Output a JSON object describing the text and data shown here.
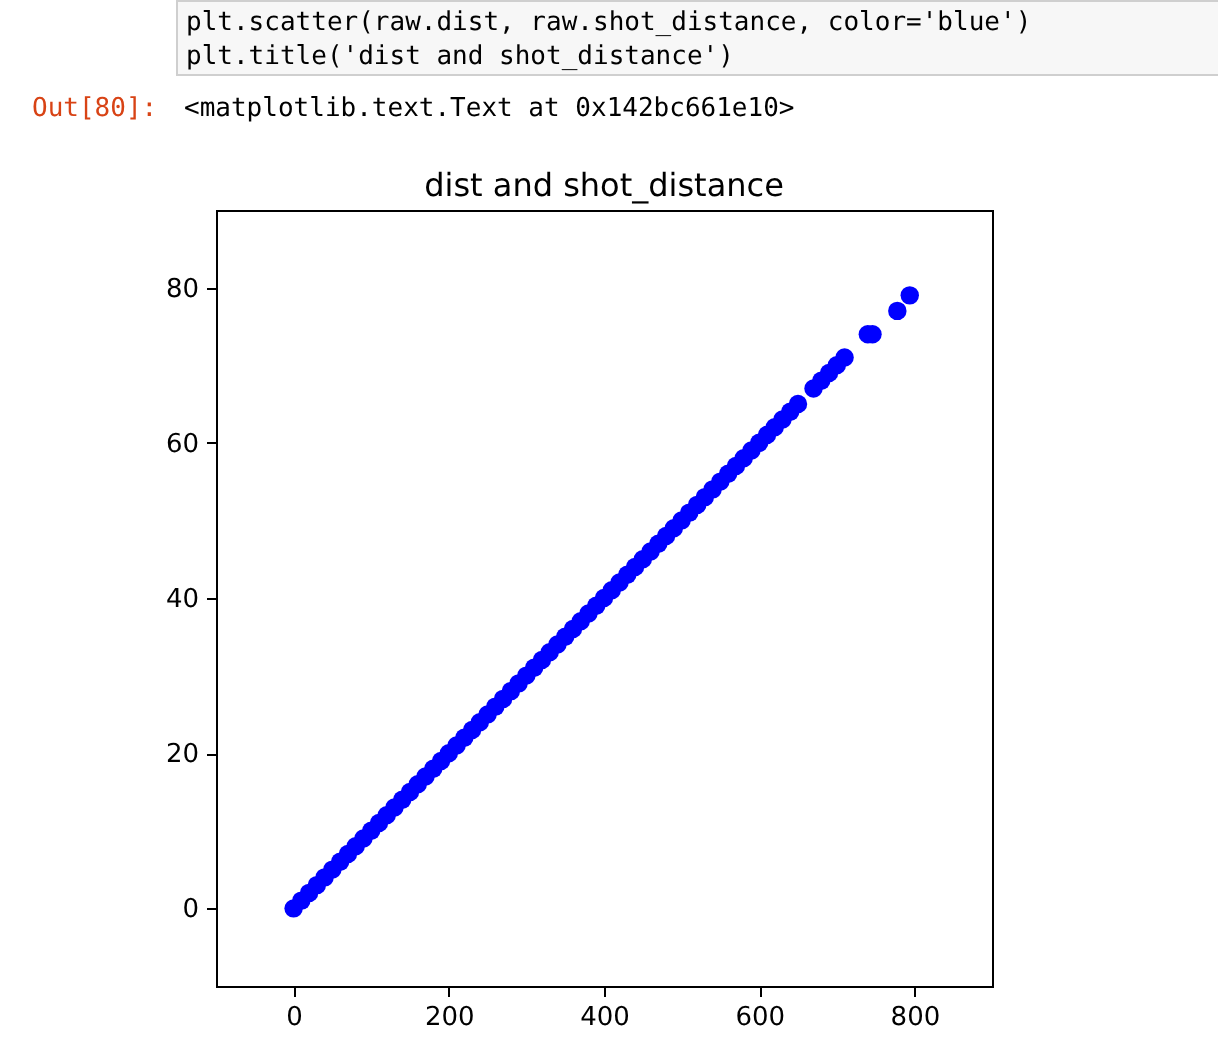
{
  "chart_data": {
    "type": "scatter",
    "title": "dist and shot_distance",
    "annotations": [
      "plt.scatter(raw.dist, raw.shot_distance, color='blue')",
      "plt.title('dist and shot_distance')",
      "Out[80]:",
      "<matplotlib.text.Text at 0x142bc661e10>"
    ],
    "x": [
      0,
      10,
      20,
      30,
      40,
      50,
      60,
      70,
      80,
      90,
      100,
      110,
      120,
      130,
      140,
      150,
      160,
      170,
      180,
      190,
      200,
      210,
      220,
      230,
      240,
      250,
      260,
      270,
      280,
      290,
      300,
      310,
      320,
      330,
      340,
      350,
      360,
      370,
      380,
      390,
      400,
      410,
      420,
      430,
      440,
      450,
      460,
      470,
      480,
      490,
      500,
      510,
      520,
      530,
      540,
      550,
      560,
      570,
      580,
      590,
      600,
      610,
      620,
      630,
      640,
      650,
      670,
      680,
      690,
      700,
      710,
      740,
      746,
      778,
      794
    ],
    "series": [
      {
        "color": "#0000ff",
        "values": [
          0,
          1,
          2,
          3,
          4,
          5,
          6,
          7,
          8,
          9,
          10,
          11,
          12,
          13,
          14,
          15,
          16,
          17,
          18,
          19,
          20,
          21,
          22,
          23,
          24,
          25,
          26,
          27,
          28,
          29,
          30,
          31,
          32,
          33,
          34,
          35,
          36,
          37,
          38,
          39,
          40,
          41,
          42,
          43,
          44,
          45,
          46,
          47,
          48,
          49,
          50,
          51,
          52,
          53,
          54,
          55,
          56,
          57,
          58,
          59,
          60,
          61,
          62,
          63,
          64,
          65,
          67,
          68,
          69,
          70,
          71,
          74,
          74,
          77,
          79
        ]
      }
    ],
    "xlim": [
      -100,
      900
    ],
    "xticks": [
      0,
      200,
      400,
      600,
      800
    ],
    "ylim": [
      -10,
      90
    ],
    "yticks": [
      0,
      20,
      40,
      60,
      80
    ],
    "marker": "circle",
    "grid": false
  }
}
